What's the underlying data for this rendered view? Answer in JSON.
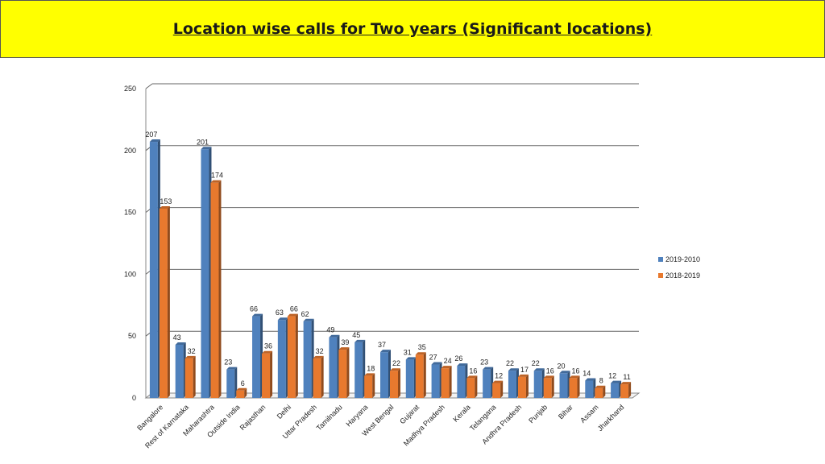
{
  "header": {
    "title": "Location wise calls for Two years (Significant locations)"
  },
  "colors": {
    "series1": "#4f81bd",
    "series2": "#e8792e",
    "title_bg": "#ffff00"
  },
  "chart_data": {
    "type": "bar",
    "title": "Location wise calls for Two years (Significant locations)",
    "xlabel": "",
    "ylabel": "",
    "ylim": [
      0,
      250
    ],
    "yticks": [
      0,
      50,
      100,
      150,
      200,
      250
    ],
    "grid": true,
    "legend_position": "right",
    "categories": [
      "Bangalore",
      "Rest of Karnataka",
      "Maharashtra",
      "Outside  India",
      "Rajasthan",
      "Delhi",
      "Uttar Pradesh",
      "Tamilnadu",
      "Haryana",
      "West Bengal",
      "Gujarat",
      "Madhya Pradesh",
      "Kerala",
      "Telangana",
      "Andhra Pradesh",
      "Punjab",
      "Bihar",
      "Assam",
      "Jharkhand"
    ],
    "series": [
      {
        "name": "2019-2010",
        "color": "#4f81bd",
        "values": [
          207,
          43,
          201,
          23,
          66,
          63,
          62,
          49,
          45,
          37,
          31,
          27,
          26,
          23,
          22,
          22,
          20,
          14,
          12
        ]
      },
      {
        "name": "2018-2019",
        "color": "#e8792e",
        "values": [
          153,
          32,
          174,
          6,
          36,
          66,
          32,
          39,
          18,
          22,
          35,
          24,
          16,
          12,
          17,
          16,
          16,
          8,
          11
        ]
      }
    ]
  }
}
